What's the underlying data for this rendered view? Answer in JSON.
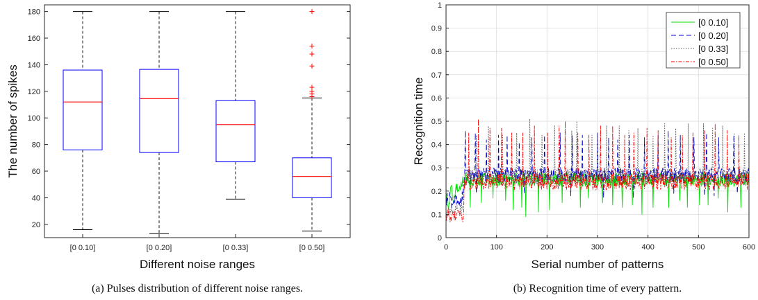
{
  "chart_data": [
    {
      "type": "boxplot",
      "xlabel": "Different noise ranges",
      "ylabel": "The number of spikes",
      "ylim": [
        10,
        185
      ],
      "yticks": [
        20,
        40,
        60,
        80,
        100,
        120,
        140,
        160,
        180
      ],
      "box_color": "#0000ff",
      "median_color": "#ff0000",
      "outlier_color": "#ff0000",
      "categories": [
        "[0 0.10]",
        "[0 0.20]",
        "[0 0.33]",
        "[0 0.50]"
      ],
      "boxes": [
        {
          "whisker_low": 16,
          "q1": 76,
          "median": 112,
          "q3": 136,
          "whisker_high": 180,
          "outliers": []
        },
        {
          "whisker_low": 13,
          "q1": 74,
          "median": 114.5,
          "q3": 136.5,
          "whisker_high": 180,
          "outliers": []
        },
        {
          "whisker_low": 39,
          "q1": 67,
          "median": 95,
          "q3": 113,
          "whisker_high": 180,
          "outliers": []
        },
        {
          "whisker_low": 15,
          "q1": 40,
          "median": 56,
          "q3": 70,
          "whisker_high": 115,
          "outliers": [
            116,
            118,
            120,
            123,
            139,
            148,
            154,
            180
          ]
        }
      ],
      "caption": "(a) Pulses distribution of different noise ranges."
    },
    {
      "type": "line",
      "xlabel": "Serial number of patterns",
      "ylabel": "Recognition time",
      "xlim": [
        0,
        600
      ],
      "ylim": [
        0,
        1
      ],
      "xticks": [
        0,
        100,
        200,
        300,
        400,
        500,
        600
      ],
      "yticks": [
        0,
        0.1,
        0.2,
        0.3,
        0.4,
        0.5,
        0.6,
        0.7,
        0.8,
        0.9,
        1
      ],
      "grid": true,
      "legend": "top-right",
      "series": [
        {
          "name": "[0 0.10]",
          "color": "#00dd00",
          "dash": "solid",
          "baseline": 0.25,
          "noise": 0.03,
          "spikes": [
            [
              48,
              0.13
            ],
            [
              70,
              0.15
            ],
            [
              93,
              0.17
            ],
            [
              118,
              0.16
            ],
            [
              133,
              0.12
            ],
            [
              150,
              0.13
            ],
            [
              158,
              0.09
            ],
            [
              183,
              0.11
            ],
            [
              205,
              0.12
            ],
            [
              230,
              0.15
            ],
            [
              266,
              0.13
            ],
            [
              282,
              0.17
            ],
            [
              310,
              0.15
            ],
            [
              330,
              0.14
            ],
            [
              349,
              0.13
            ],
            [
              369,
              0.14
            ],
            [
              388,
              0.1
            ],
            [
              410,
              0.13
            ],
            [
              441,
              0.13
            ],
            [
              463,
              0.16
            ],
            [
              478,
              0.13
            ],
            [
              502,
              0.14
            ],
            [
              519,
              0.14
            ],
            [
              539,
              0.17
            ],
            [
              558,
              0.11
            ],
            [
              584,
              0.13
            ]
          ],
          "init": [
            [
              0,
              0.2
            ],
            [
              5,
              0.12
            ],
            [
              10,
              0.22
            ],
            [
              15,
              0.15
            ],
            [
              20,
              0.23
            ],
            [
              25,
              0.2
            ],
            [
              30,
              0.24
            ],
            [
              35,
              0.24
            ]
          ]
        },
        {
          "name": "[0 0.20]",
          "color": "#0000cc",
          "dash": "7,4",
          "baseline": 0.27,
          "noise": 0.03,
          "spikes": [
            [
              3,
              0.37
            ],
            [
              38,
              0.46
            ],
            [
              58,
              0.45
            ],
            [
              80,
              0.42
            ],
            [
              104,
              0.44
            ],
            [
              121,
              0.44
            ],
            [
              145,
              0.41
            ],
            [
              170,
              0.43
            ],
            [
              195,
              0.44
            ],
            [
              226,
              0.45
            ],
            [
              250,
              0.44
            ],
            [
              270,
              0.44
            ],
            [
              300,
              0.45
            ],
            [
              322,
              0.43
            ],
            [
              340,
              0.42
            ],
            [
              363,
              0.44
            ],
            [
              393,
              0.43
            ],
            [
              420,
              0.44
            ],
            [
              440,
              0.46
            ],
            [
              464,
              0.44
            ],
            [
              491,
              0.43
            ],
            [
              516,
              0.45
            ],
            [
              540,
              0.43
            ],
            [
              570,
              0.44
            ],
            [
              60,
              0.19
            ],
            [
              155,
              0.19
            ],
            [
              247,
              0.18
            ],
            [
              312,
              0.17
            ],
            [
              371,
              0.17
            ],
            [
              451,
              0.19
            ],
            [
              512,
              0.18
            ],
            [
              531,
              0.18
            ],
            [
              577,
              0.19
            ]
          ],
          "init": [
            [
              0,
              0.16
            ],
            [
              6,
              0.18
            ],
            [
              12,
              0.14
            ],
            [
              18,
              0.17
            ],
            [
              24,
              0.16
            ],
            [
              30,
              0.15
            ],
            [
              36,
              0.22
            ]
          ]
        },
        {
          "name": "[0 0.33]",
          "color": "#555555",
          "dash": "1.5,2",
          "baseline": 0.26,
          "noise": 0.035,
          "spikes": [
            [
              60,
              0.44
            ],
            [
              84,
              0.48
            ],
            [
              112,
              0.44
            ],
            [
              140,
              0.45
            ],
            [
              166,
              0.51
            ],
            [
              190,
              0.44
            ],
            [
              215,
              0.48
            ],
            [
              249,
              0.46
            ],
            [
              259,
              0.5
            ],
            [
              289,
              0.44
            ],
            [
              318,
              0.48
            ],
            [
              343,
              0.48
            ],
            [
              362,
              0.46
            ],
            [
              380,
              0.47
            ],
            [
              410,
              0.44
            ],
            [
              433,
              0.49
            ],
            [
              455,
              0.47
            ],
            [
              480,
              0.49
            ],
            [
              510,
              0.49
            ],
            [
              528,
              0.47
            ],
            [
              548,
              0.48
            ],
            [
              571,
              0.45
            ],
            [
              591,
              0.45
            ]
          ],
          "init": [
            [
              0,
              0.12
            ],
            [
              8,
              0.1
            ],
            [
              16,
              0.12
            ],
            [
              24,
              0.11
            ],
            [
              32,
              0.13
            ]
          ]
        },
        {
          "name": "[0 0.50]",
          "color": "#ff0000",
          "dash": "5,2,1.5,2",
          "baseline": 0.24,
          "noise": 0.035,
          "spikes": [
            [
              25,
              0.35
            ],
            [
              45,
              0.45
            ],
            [
              64,
              0.51
            ],
            [
              87,
              0.47
            ],
            [
              110,
              0.47
            ],
            [
              130,
              0.45
            ],
            [
              152,
              0.45
            ],
            [
              175,
              0.48
            ],
            [
              201,
              0.45
            ],
            [
              224,
              0.48
            ],
            [
              236,
              0.5
            ],
            [
              261,
              0.45
            ],
            [
              283,
              0.44
            ],
            [
              306,
              0.48
            ],
            [
              330,
              0.48
            ],
            [
              354,
              0.44
            ],
            [
              372,
              0.45
            ],
            [
              398,
              0.47
            ],
            [
              420,
              0.46
            ],
            [
              446,
              0.43
            ],
            [
              468,
              0.44
            ],
            [
              489,
              0.45
            ],
            [
              512,
              0.46
            ],
            [
              533,
              0.49
            ],
            [
              557,
              0.46
            ],
            [
              580,
              0.44
            ]
          ],
          "init": [
            [
              0,
              0.09
            ],
            [
              5,
              0.12
            ],
            [
              10,
              0.07
            ],
            [
              15,
              0.1
            ],
            [
              20,
              0.08
            ],
            [
              25,
              0.11
            ],
            [
              30,
              0.09
            ]
          ]
        }
      ],
      "caption": "(b) Recognition time of every pattern."
    }
  ]
}
